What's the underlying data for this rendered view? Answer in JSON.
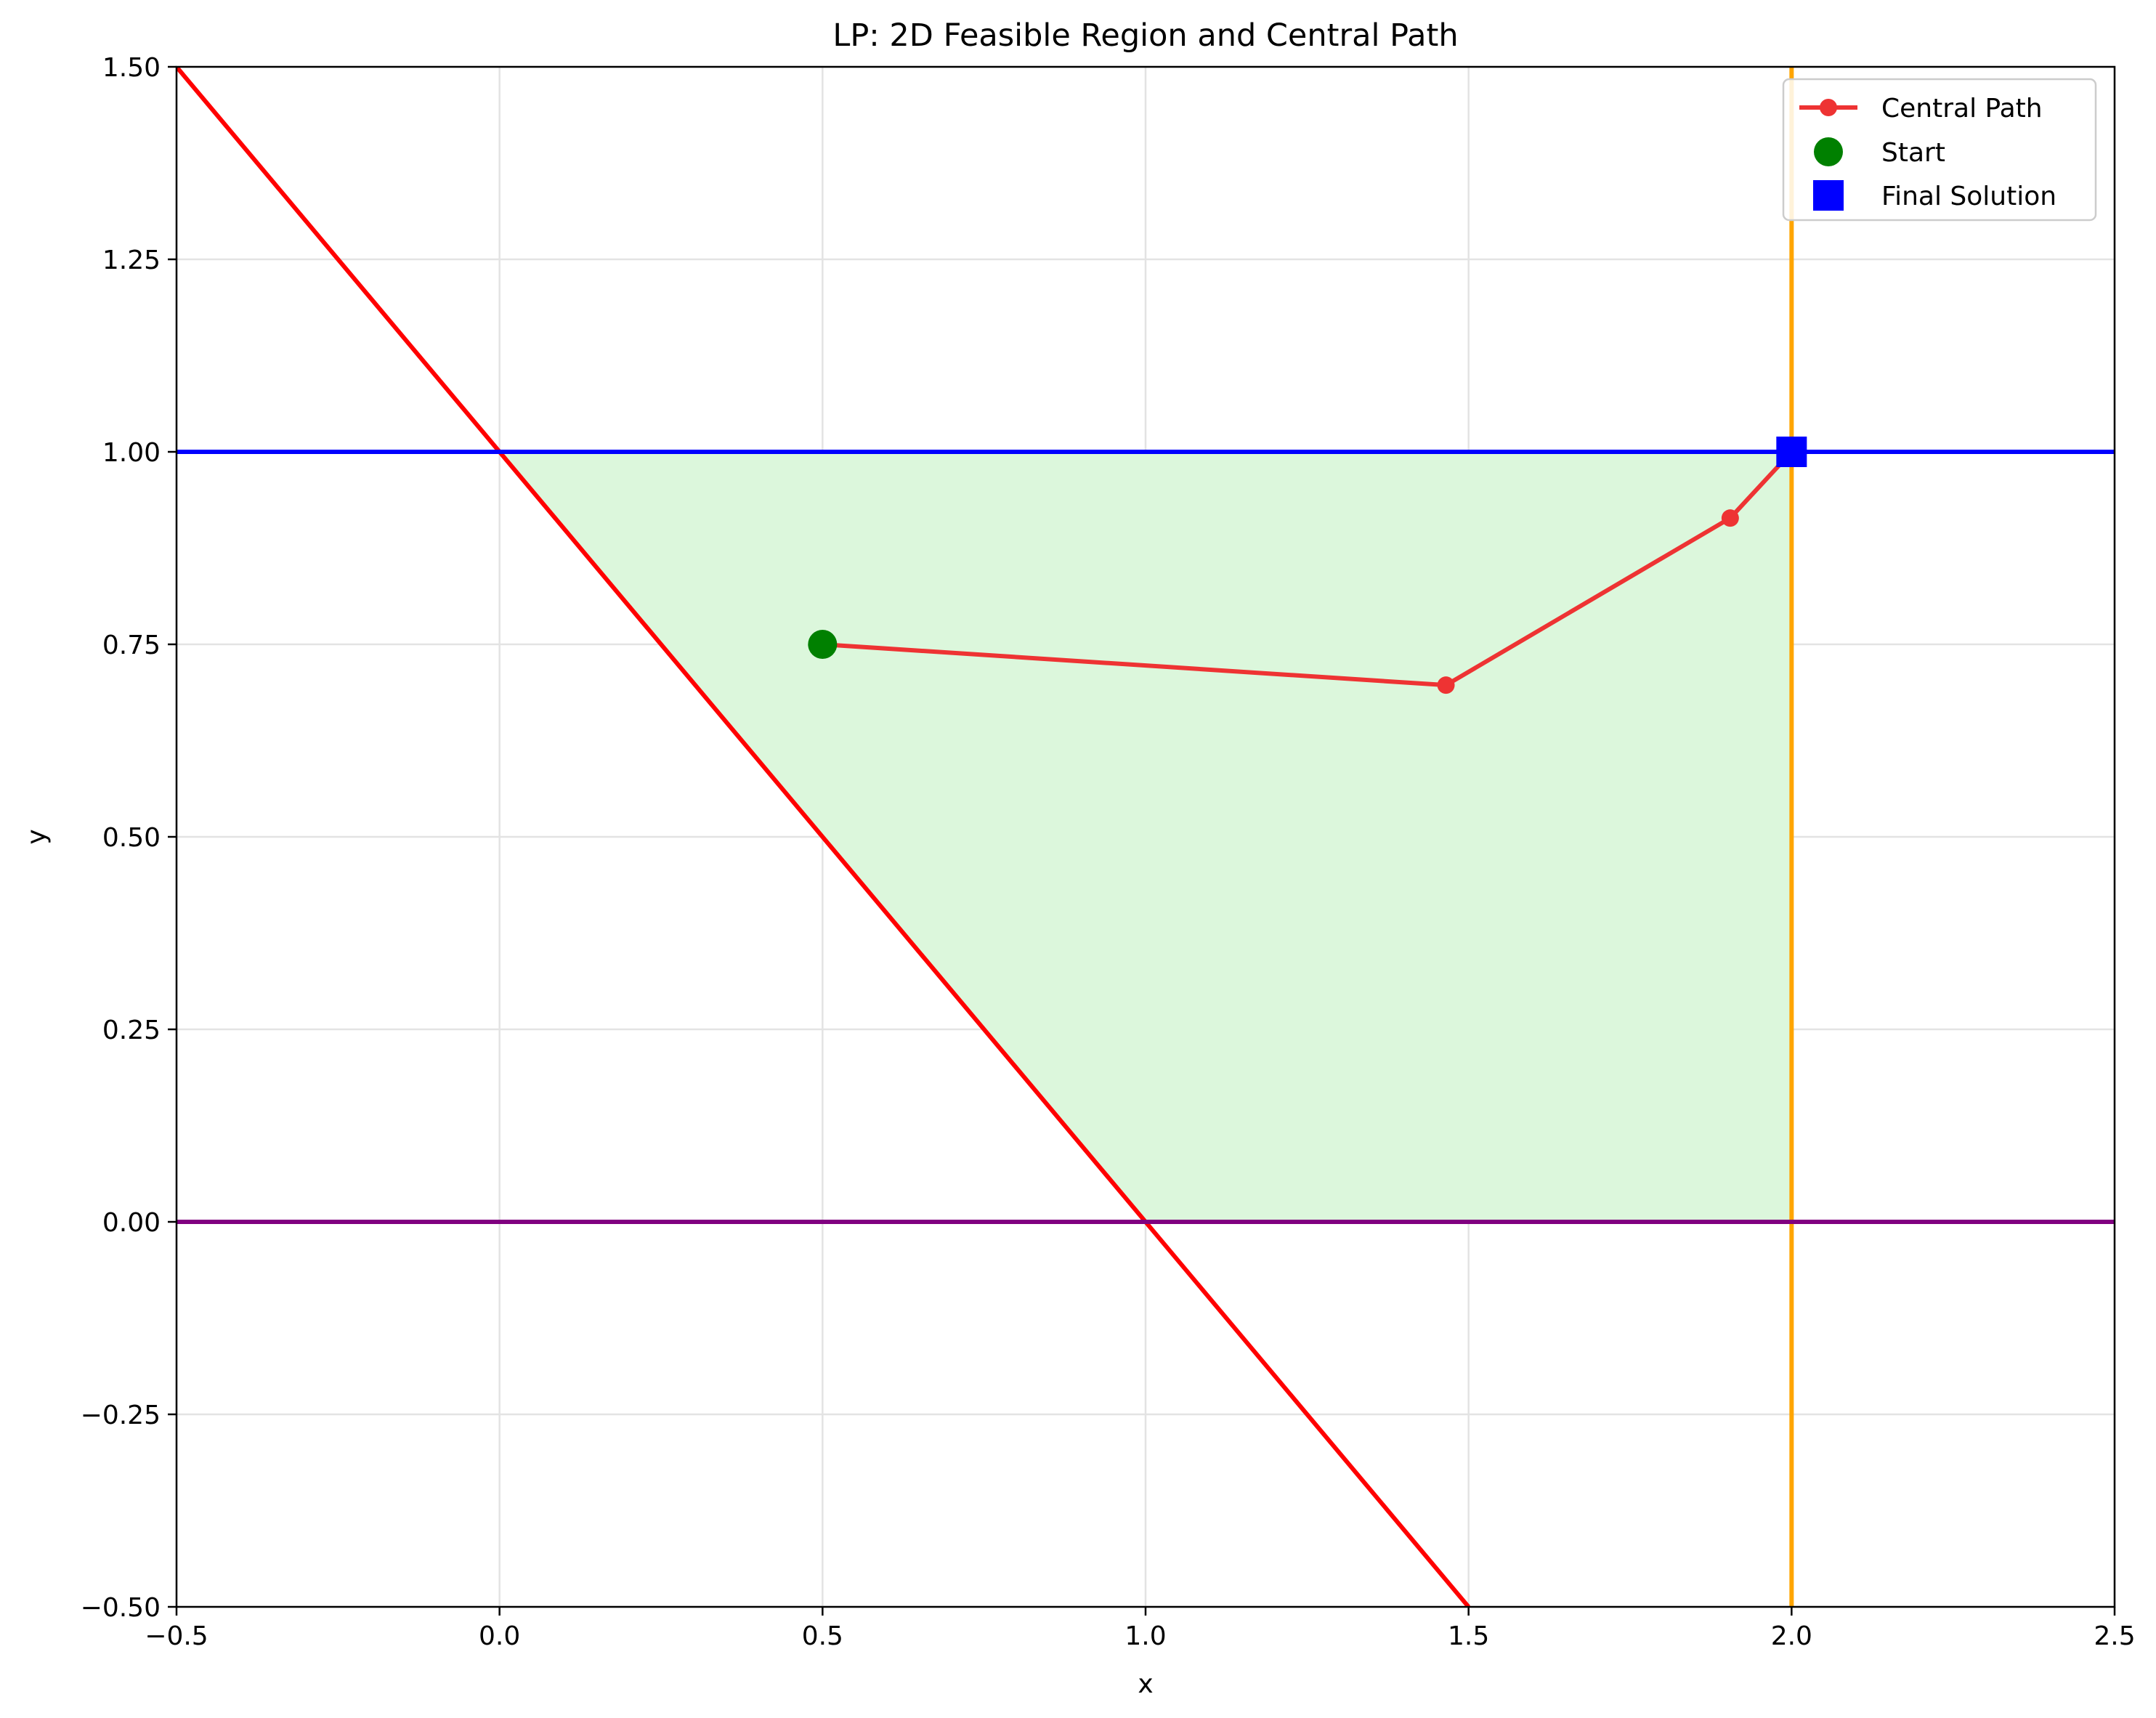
{
  "chart_data": {
    "type": "line",
    "title": "LP: 2D Feasible Region and Central Path",
    "xlabel": "x",
    "ylabel": "y",
    "xlim": [
      -0.5,
      2.5
    ],
    "ylim": [
      -0.5,
      1.5
    ],
    "xticks": [
      -0.5,
      0.0,
      0.5,
      1.0,
      1.5,
      2.0,
      2.5
    ],
    "xtick_labels": [
      "−0.5",
      "0.0",
      "0.5",
      "1.0",
      "1.5",
      "2.0",
      "2.5"
    ],
    "yticks": [
      -0.5,
      -0.25,
      0.0,
      0.25,
      0.5,
      0.75,
      1.0,
      1.25,
      1.5
    ],
    "ytick_labels": [
      "−0.50",
      "−0.25",
      "0.00",
      "0.25",
      "0.50",
      "0.75",
      "1.00",
      "1.25",
      "1.50"
    ],
    "grid": true,
    "legend_position": "top-right",
    "feasible_region": {
      "vertices": [
        [
          0.0,
          1.0
        ],
        [
          2.0,
          1.0
        ],
        [
          2.0,
          0.0
        ],
        [
          1.0,
          0.0
        ]
      ],
      "color": "#dcf7dc"
    },
    "constraint_lines": [
      {
        "points": [
          [
            -0.5,
            1.5
          ],
          [
            1.5,
            -0.5
          ]
        ],
        "color": "#ff0000"
      },
      {
        "points": [
          [
            -0.5,
            1.0
          ],
          [
            2.5,
            1.0
          ]
        ],
        "color": "#0000ff"
      },
      {
        "points": [
          [
            2.0,
            -0.5
          ],
          [
            2.0,
            1.5
          ]
        ],
        "color": "#ffa500"
      },
      {
        "points": [
          [
            -0.5,
            0.0
          ],
          [
            2.5,
            0.0
          ]
        ],
        "color": "#800080"
      }
    ],
    "series": [
      {
        "name": "Central Path",
        "color": "#ee3333",
        "x": [
          0.5,
          1.465,
          1.905,
          2.0
        ],
        "y": [
          0.75,
          0.697,
          0.914,
          1.0
        ]
      },
      {
        "name": "Start",
        "color": "#008000",
        "x": [
          0.5
        ],
        "y": [
          0.75
        ]
      },
      {
        "name": "Final Solution",
        "color": "#0000ff",
        "x": [
          2.0
        ],
        "y": [
          1.0
        ]
      }
    ]
  }
}
